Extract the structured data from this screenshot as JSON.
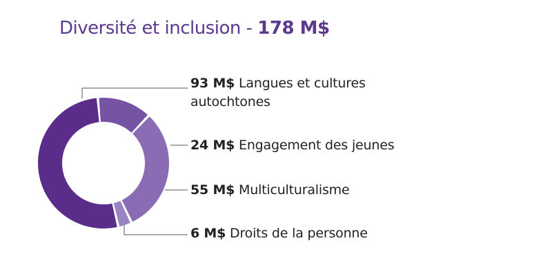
{
  "title": {
    "text": "Diversité et inclusion - ",
    "total": "178 M$"
  },
  "chart_data": {
    "type": "pie",
    "title": "Diversité et inclusion - 178 M$",
    "unit": "M$",
    "slices": [
      {
        "value": 93,
        "amount_label": "93 M$",
        "label_line1": "Langues et cultures",
        "label_line2": "autochtones",
        "color": "#5a2d8a"
      },
      {
        "value": 24,
        "amount_label": "24 M$",
        "label_line1": "Engagement des jeunes",
        "label_line2": "",
        "color": "#7753a3"
      },
      {
        "value": 55,
        "amount_label": "55 M$",
        "label_line1": "Multiculturalisme",
        "label_line2": "",
        "color": "#8a6cb4"
      },
      {
        "value": 6,
        "amount_label": "6 M$",
        "label_line1": "Droits de la personne",
        "label_line2": "",
        "color": "#9b84c2"
      }
    ]
  }
}
